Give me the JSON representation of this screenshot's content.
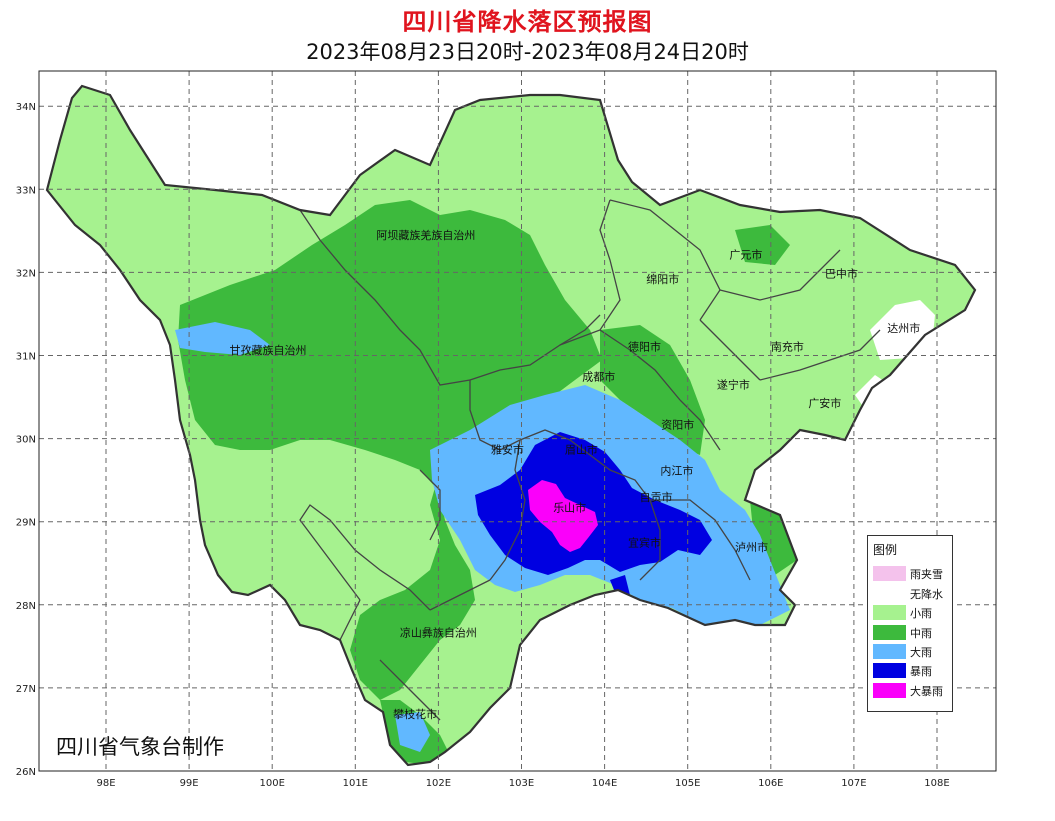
{
  "header": {
    "title": "四川省降水落区预报图",
    "subtitle": "2023年08月23日20时-2023年08月24日20时"
  },
  "axes": {
    "lat_labels": [
      "34N",
      "33N",
      "32N",
      "31N",
      "30N",
      "29N",
      "28N",
      "27N",
      "26N"
    ],
    "lat_values": [
      34,
      33,
      32,
      31,
      30,
      29,
      28,
      27,
      26
    ],
    "lon_labels": [
      "98E",
      "99E",
      "100E",
      "101E",
      "102E",
      "103E",
      "104E",
      "105E",
      "106E",
      "107E",
      "108E"
    ],
    "lon_values": [
      98,
      99,
      100,
      101,
      102,
      103,
      104,
      105,
      106,
      107,
      108
    ]
  },
  "regions": [
    {
      "name": "阿坝藏族羌族自治州",
      "lon": 101.85,
      "lat": 32.4
    },
    {
      "name": "甘孜藏族自治州",
      "lon": 99.95,
      "lat": 31.02
    },
    {
      "name": "广元市",
      "lon": 105.7,
      "lat": 32.17
    },
    {
      "name": "巴中市",
      "lon": 106.85,
      "lat": 31.94
    },
    {
      "name": "绵阳市",
      "lon": 104.7,
      "lat": 31.87
    },
    {
      "name": "达州市",
      "lon": 107.6,
      "lat": 31.28
    },
    {
      "name": "德阳市",
      "lon": 104.48,
      "lat": 31.06
    },
    {
      "name": "南充市",
      "lon": 106.2,
      "lat": 31.06
    },
    {
      "name": "成都市",
      "lon": 103.93,
      "lat": 30.7
    },
    {
      "name": "遂宁市",
      "lon": 105.55,
      "lat": 30.6
    },
    {
      "name": "广安市",
      "lon": 106.65,
      "lat": 30.38
    },
    {
      "name": "资阳市",
      "lon": 104.88,
      "lat": 30.12
    },
    {
      "name": "雅安市",
      "lon": 102.83,
      "lat": 29.82
    },
    {
      "name": "眉山市",
      "lon": 103.72,
      "lat": 29.82
    },
    {
      "name": "内江市",
      "lon": 104.87,
      "lat": 29.57
    },
    {
      "name": "自贡市",
      "lon": 104.62,
      "lat": 29.25
    },
    {
      "name": "乐山市",
      "lon": 103.58,
      "lat": 29.12
    },
    {
      "name": "宜宾市",
      "lon": 104.48,
      "lat": 28.7
    },
    {
      "name": "泸州市",
      "lon": 105.77,
      "lat": 28.65
    },
    {
      "name": "凉山彝族自治州",
      "lon": 102.0,
      "lat": 27.62
    },
    {
      "name": "攀枝花市",
      "lon": 101.72,
      "lat": 26.64
    }
  ],
  "legend": {
    "title": "图例",
    "items": [
      {
        "label": "雨夹雪",
        "color": "#f4c2ec"
      },
      {
        "label": "无降水",
        "color": "#ffffff"
      },
      {
        "label": "小雨",
        "color": "#a6f28f"
      },
      {
        "label": "中雨",
        "color": "#3dba3d"
      },
      {
        "label": "大雨",
        "color": "#61b8ff"
      },
      {
        "label": "暴雨",
        "color": "#0000e1"
      },
      {
        "label": "大暴雨",
        "color": "#fa00fa"
      }
    ]
  },
  "colors": {
    "light_rain": "#a6f28f",
    "moderate_rain": "#3dba3d",
    "heavy_rain": "#61b8ff",
    "rainstorm": "#0000e1",
    "heavy_rainstorm": "#fa00fa",
    "no_rain": "#ffffff",
    "border": "#444444",
    "grid": "#666666",
    "title": "#e0141e"
  },
  "footer": {
    "credit": "四川省气象台制作"
  }
}
